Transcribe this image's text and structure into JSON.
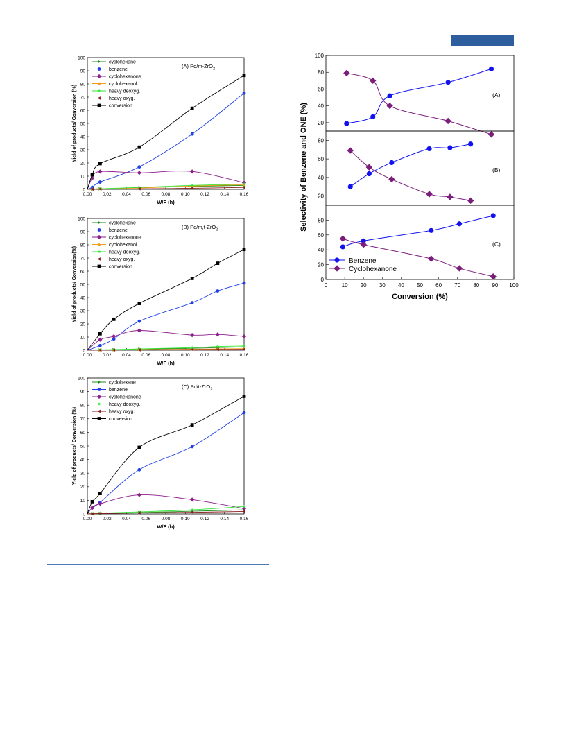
{
  "colors": {
    "header_bar": "#2f5e9e",
    "rule": "#4a76b8",
    "cyclohexane": "#1e8c1e",
    "benzene": "#1f3fe6",
    "cyclohexanone": "#8b1f8b",
    "cyclohexanol": "#f59a1d",
    "heavy_deoxyg": "#33e633",
    "heavy_oxyg": "#8b1a1a",
    "conversion": "#000000",
    "sel_benzene": "#1212ee",
    "sel_cyclohexanone": "#7b1d7b"
  },
  "chart_data": [
    {
      "type": "line",
      "panel_label": "(A) Pd/m-ZrO",
      "panel_sub": "2",
      "xlabel": "W/F (h)",
      "ylabel": "Yield of products/ Conversion (%)",
      "xlim": [
        0,
        0.16
      ],
      "ylim": [
        0,
        100
      ],
      "xticks": [
        "0.00",
        "0.02",
        "0.04",
        "0.06",
        "0.08",
        "0.10",
        "0.12",
        "0.14",
        "0.16"
      ],
      "yticks": [
        "0",
        "10",
        "20",
        "30",
        "40",
        "50",
        "60",
        "70",
        "80",
        "90",
        "100"
      ],
      "legend_position": "top-left",
      "series": [
        {
          "name": "cyclohexane",
          "color_key": "cyclohexane",
          "marker": "tri-right",
          "x": [
            0.005,
            0.013,
            0.053,
            0.107,
            0.16
          ],
          "y": [
            0.2,
            0.4,
            1.2,
            2.2,
            3.0
          ]
        },
        {
          "name": "benzene",
          "color_key": "benzene",
          "marker": "circle",
          "x": [
            0.005,
            0.013,
            0.053,
            0.107,
            0.16
          ],
          "y": [
            1.5,
            5.5,
            17,
            42,
            73
          ]
        },
        {
          "name": "cyclohexanone",
          "color_key": "cyclohexanone",
          "marker": "diamond",
          "x": [
            0.005,
            0.013,
            0.053,
            0.107,
            0.16
          ],
          "y": [
            8.5,
            13.5,
            12.5,
            13.5,
            5.0
          ]
        },
        {
          "name": "cyclohexanol",
          "color_key": "cyclohexanol",
          "marker": "tri-up",
          "x": [
            0.005,
            0.013,
            0.053,
            0.107,
            0.16
          ],
          "y": [
            0.3,
            0.5,
            1.0,
            2.5,
            3.5
          ]
        },
        {
          "name": "heavy deoxyg.",
          "color_key": "heavy_deoxyg",
          "marker": "star",
          "x": [
            0.005,
            0.013,
            0.053,
            0.107,
            0.16
          ],
          "y": [
            0.2,
            0.4,
            1.5,
            3.0,
            4.0
          ]
        },
        {
          "name": "heavy oxyg.",
          "color_key": "heavy_oxyg",
          "marker": "tri-left",
          "x": [
            0.005,
            0.013,
            0.053,
            0.107,
            0.16
          ],
          "y": [
            0.1,
            0.2,
            0.4,
            0.8,
            1.5
          ]
        },
        {
          "name": "conversion",
          "color_key": "conversion",
          "marker": "square",
          "x": [
            0.005,
            0.013,
            0.053,
            0.107,
            0.16
          ],
          "y": [
            11,
            19.5,
            32,
            61.5,
            86.5
          ]
        }
      ]
    },
    {
      "type": "line",
      "panel_label": "(B) Pd/m,t-ZrO",
      "panel_sub": "2",
      "xlabel": "W/F (h)",
      "ylabel": "Yield of products/ Conversion(%)",
      "xlim": [
        0,
        0.16
      ],
      "ylim": [
        0,
        100
      ],
      "xticks": [
        "0.00",
        "0.02",
        "0.04",
        "0.06",
        "0.08",
        "0.10",
        "0.12",
        "0.14",
        "0.16"
      ],
      "yticks": [
        "0",
        "10",
        "20",
        "30",
        "40",
        "50",
        "60",
        "70",
        "80",
        "90",
        "100"
      ],
      "legend_position": "top-left",
      "series": [
        {
          "name": "cyclohexane",
          "color_key": "cyclohexane",
          "marker": "tri-right",
          "x": [
            0.013,
            0.027,
            0.053,
            0.107,
            0.133,
            0.16
          ],
          "y": [
            0.2,
            0.4,
            0.8,
            1.5,
            2.0,
            2.5
          ]
        },
        {
          "name": "benzene",
          "color_key": "benzene",
          "marker": "circle",
          "x": [
            0.013,
            0.027,
            0.053,
            0.107,
            0.133,
            0.16
          ],
          "y": [
            3.5,
            8.5,
            22,
            36,
            45,
            51
          ]
        },
        {
          "name": "cyclohexanone",
          "color_key": "cyclohexanone",
          "marker": "diamond",
          "x": [
            0.013,
            0.027,
            0.053,
            0.107,
            0.133,
            0.16
          ],
          "y": [
            8,
            10.5,
            15,
            11.5,
            12,
            10.5
          ]
        },
        {
          "name": "cyclohexanol",
          "color_key": "cyclohexanol",
          "marker": "tri-up",
          "x": [
            0.013,
            0.027,
            0.053,
            0.107,
            0.133,
            0.16
          ],
          "y": [
            0.2,
            0.3,
            0.5,
            0.8,
            1.0,
            1.2
          ]
        },
        {
          "name": "heavy deoxyg.",
          "color_key": "heavy_deoxyg",
          "marker": "star",
          "x": [
            0.013,
            0.027,
            0.053,
            0.107,
            0.133,
            0.16
          ],
          "y": [
            0.3,
            0.5,
            1.0,
            2.0,
            2.8,
            3.2
          ]
        },
        {
          "name": "heavy oxyg.",
          "color_key": "heavy_oxyg",
          "marker": "tri-left",
          "x": [
            0.013,
            0.027,
            0.053,
            0.107,
            0.133,
            0.16
          ],
          "y": [
            0.1,
            0.2,
            0.3,
            0.5,
            0.6,
            0.7
          ]
        },
        {
          "name": "conversion",
          "color_key": "conversion",
          "marker": "square",
          "x": [
            0.013,
            0.027,
            0.053,
            0.107,
            0.133,
            0.16
          ],
          "y": [
            12.5,
            23.5,
            35.5,
            54.5,
            66,
            76.5
          ]
        }
      ]
    },
    {
      "type": "line",
      "panel_label": "(C) Pd/t-ZrO",
      "panel_sub": "2",
      "xlabel": "W/F (h)",
      "ylabel": "Yield of products/ Conversion (%)",
      "xlim": [
        0,
        0.16
      ],
      "ylim": [
        0,
        100
      ],
      "xticks": [
        "0.00",
        "0.02",
        "0.04",
        "0.06",
        "0.08",
        "0.10",
        "0.12",
        "0.14",
        "0.16"
      ],
      "yticks": [
        "0",
        "10",
        "20",
        "30",
        "40",
        "50",
        "60",
        "70",
        "80",
        "90",
        "100"
      ],
      "legend_position": "top-left",
      "series": [
        {
          "name": "cyclohexane",
          "color_key": "cyclohexane",
          "marker": "tri-right",
          "x": [
            0.005,
            0.013,
            0.053,
            0.107,
            0.16
          ],
          "y": [
            0.2,
            0.4,
            1.0,
            2.0,
            3.0
          ]
        },
        {
          "name": "benzene",
          "color_key": "benzene",
          "marker": "circle",
          "x": [
            0.005,
            0.013,
            0.053,
            0.107,
            0.16
          ],
          "y": [
            4.5,
            8.5,
            32.5,
            49.5,
            74.5
          ]
        },
        {
          "name": "cyclohexanone",
          "color_key": "cyclohexanone",
          "marker": "diamond",
          "x": [
            0.005,
            0.013,
            0.053,
            0.107,
            0.16
          ],
          "y": [
            4.5,
            7.5,
            14,
            10.5,
            4
          ]
        },
        {
          "name": "heavy deoxyg.",
          "color_key": "heavy_deoxyg",
          "marker": "star",
          "x": [
            0.005,
            0.013,
            0.053,
            0.107,
            0.16
          ],
          "y": [
            0.3,
            0.6,
            1.5,
            3.0,
            5.5
          ]
        },
        {
          "name": "heavy oxyg.",
          "color_key": "heavy_oxyg",
          "marker": "tri-left",
          "x": [
            0.005,
            0.013,
            0.053,
            0.107,
            0.16
          ],
          "y": [
            0.1,
            0.3,
            0.8,
            1.2,
            1.8
          ]
        },
        {
          "name": "conversion",
          "color_key": "conversion",
          "marker": "square",
          "x": [
            0.005,
            0.013,
            0.053,
            0.107,
            0.16
          ],
          "y": [
            9,
            15,
            49,
            65.5,
            86.5
          ]
        }
      ]
    },
    {
      "type": "scatter",
      "ylabel": "Selectivity of Benzene and ONE  (%)",
      "xlabel": "Conversion (%)",
      "xlim": [
        0,
        100
      ],
      "xticks": [
        "0",
        "10",
        "20",
        "30",
        "40",
        "50",
        "60",
        "70",
        "80",
        "90",
        "100"
      ],
      "legend_position": "bottom-left",
      "legend": [
        {
          "name": "Benzene",
          "color_key": "sel_benzene",
          "marker": "circle"
        },
        {
          "name": "Cyclohexanone",
          "color_key": "sel_cyclohexanone",
          "marker": "diamond"
        }
      ],
      "panels": [
        {
          "label": "(A)",
          "ylim": [
            10,
            100
          ],
          "yticks": [
            "20",
            "40",
            "60",
            "80",
            "100"
          ],
          "series": [
            {
              "name": "Benzene",
              "color_key": "sel_benzene",
              "marker": "circle",
              "x": [
                11,
                25,
                34,
                65,
                88
              ],
              "y": [
                19,
                27,
                52,
                68,
                84
              ]
            },
            {
              "name": "Cyclohexanone",
              "color_key": "sel_cyclohexanone",
              "marker": "diamond",
              "x": [
                11,
                25,
                34,
                65,
                88
              ],
              "y": [
                79,
                70,
                40,
                22,
                6
              ]
            }
          ]
        },
        {
          "label": "(B)",
          "ylim": [
            10,
            90
          ],
          "yticks": [
            "20",
            "40",
            "60",
            "80"
          ],
          "series": [
            {
              "name": "Benzene",
              "color_key": "sel_benzene",
              "marker": "circle",
              "x": [
                13,
                23,
                35,
                55,
                66,
                77
              ],
              "y": [
                30,
                44,
                56,
                71,
                72,
                76
              ]
            },
            {
              "name": "Cyclohexanone",
              "color_key": "sel_cyclohexanone",
              "marker": "diamond",
              "x": [
                13,
                23,
                35,
                55,
                66,
                77
              ],
              "y": [
                69,
                51,
                38,
                22,
                19,
                15
              ]
            }
          ]
        },
        {
          "label": "(C)",
          "ylim": [
            0,
            100
          ],
          "yticks": [
            "0",
            "20",
            "40",
            "60",
            "80"
          ],
          "series": [
            {
              "name": "Benzene",
              "color_key": "sel_benzene",
              "marker": "circle",
              "x": [
                9,
                20,
                56,
                71,
                89
              ],
              "y": [
                44,
                52,
                66,
                75,
                86
              ]
            },
            {
              "name": "Cyclohexanone",
              "color_key": "sel_cyclohexanone",
              "marker": "diamond",
              "x": [
                9,
                20,
                56,
                71,
                89
              ],
              "y": [
                55,
                47,
                28,
                15,
                4
              ]
            }
          ]
        }
      ]
    }
  ]
}
